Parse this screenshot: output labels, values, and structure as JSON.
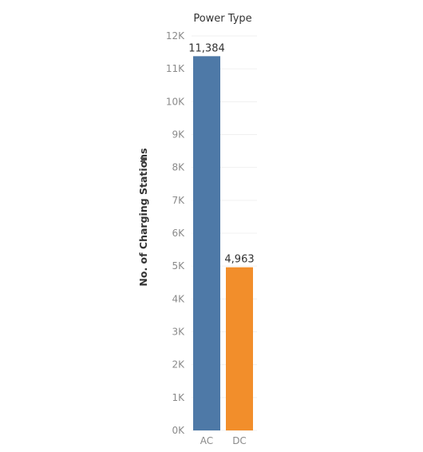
{
  "chart_data": {
    "type": "bar",
    "header": "Power Type",
    "ylabel": "No. of Charging Stations",
    "categories": [
      "AC",
      "DC"
    ],
    "values": [
      11384,
      4963
    ],
    "value_labels": [
      "11,384",
      "4,963"
    ],
    "colors": [
      "#4e79a7",
      "#f28e2b"
    ],
    "ylim": [
      0,
      12000
    ],
    "yticks": [
      0,
      1000,
      2000,
      3000,
      4000,
      5000,
      6000,
      7000,
      8000,
      9000,
      10000,
      11000,
      12000
    ],
    "ytick_labels": [
      "0K",
      "1K",
      "2K",
      "3K",
      "4K",
      "5K",
      "6K",
      "7K",
      "8K",
      "9K",
      "10K",
      "11K",
      "12K"
    ],
    "grid": true,
    "legend": "none"
  }
}
